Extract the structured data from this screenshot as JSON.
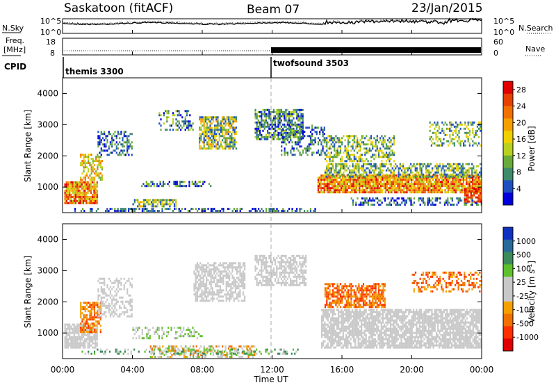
{
  "header": {
    "station": "Saskatoon (fitACF)",
    "beam": "Beam 07",
    "date": "23/Jan/2015"
  },
  "noise_panel": {
    "left_label": "N.Sky",
    "right_label": "N.Search",
    "left_ticks": [
      "10^5",
      "10^0"
    ],
    "right_ticks": [
      "10^5",
      "10^0"
    ]
  },
  "freq_panel": {
    "left_label_1": "Freq.",
    "left_label_2": "[MHz]",
    "right_label": "Nave",
    "left_ticks": [
      "18",
      "8"
    ],
    "right_ticks": [
      "60",
      "0"
    ]
  },
  "cpid": {
    "label": "CPID",
    "segments": [
      {
        "name": "themis 3300",
        "start_hour": 0
      },
      {
        "name": "twofsound 3503",
        "start_hour": 12
      }
    ]
  },
  "colors": {
    "power": [
      "#0000dd",
      "#1e4fbf",
      "#3f8a6a",
      "#6aaa3a",
      "#b8d020",
      "#f0d000",
      "#f4a000",
      "#f07000",
      "#e84000",
      "#e00000"
    ],
    "velocity": [
      "#1030c0",
      "#2a6a9a",
      "#3d8a5a",
      "#5ec02a",
      "#c8c8c8",
      "#c8c8c8",
      "#f5a000",
      "#f07000",
      "#ff3000",
      "#e00000"
    ]
  },
  "chart_data": [
    {
      "type": "line",
      "title": "",
      "xlabel": "",
      "ylabel": "N.Sky",
      "y2label": "N.Search",
      "xlim": [
        0,
        24
      ],
      "ylim": [
        "10^0",
        "10^5"
      ]
    },
    {
      "type": "line",
      "title": "",
      "xlabel": "",
      "ylabel": "Freq. [MHz]",
      "y2label": "Nave",
      "xlim": [
        0,
        24
      ],
      "ylim": [
        8,
        18
      ],
      "y2lim": [
        0,
        60
      ]
    },
    {
      "type": "heatmap",
      "title": "",
      "xlabel": "",
      "ylabel": "Slant Range [km]",
      "xlim": [
        0,
        24
      ],
      "ylim": [
        180,
        4500
      ],
      "y_ticks": [
        1000,
        2000,
        3000,
        4000
      ],
      "colorbar": {
        "label": "Power [dB]",
        "ticks": [
          4,
          8,
          12,
          16,
          20,
          24,
          28
        ],
        "range": [
          0,
          30
        ]
      }
    },
    {
      "type": "heatmap",
      "title": "",
      "xlabel": "Time UT",
      "ylabel": "Slant Range [km]",
      "xlim": [
        0,
        24
      ],
      "ylim": [
        180,
        4500
      ],
      "x_ticks": [
        "00:00",
        "04:00",
        "08:00",
        "12:00",
        "16:00",
        "20:00",
        "00:00"
      ],
      "y_ticks": [
        1000,
        2000,
        3000,
        4000
      ],
      "colorbar": {
        "label": "Velocity [m s^-1]",
        "ticks": [
          "1000",
          "500",
          "100",
          "25",
          "-25",
          "-100",
          "-500",
          "-1000"
        ]
      }
    }
  ]
}
